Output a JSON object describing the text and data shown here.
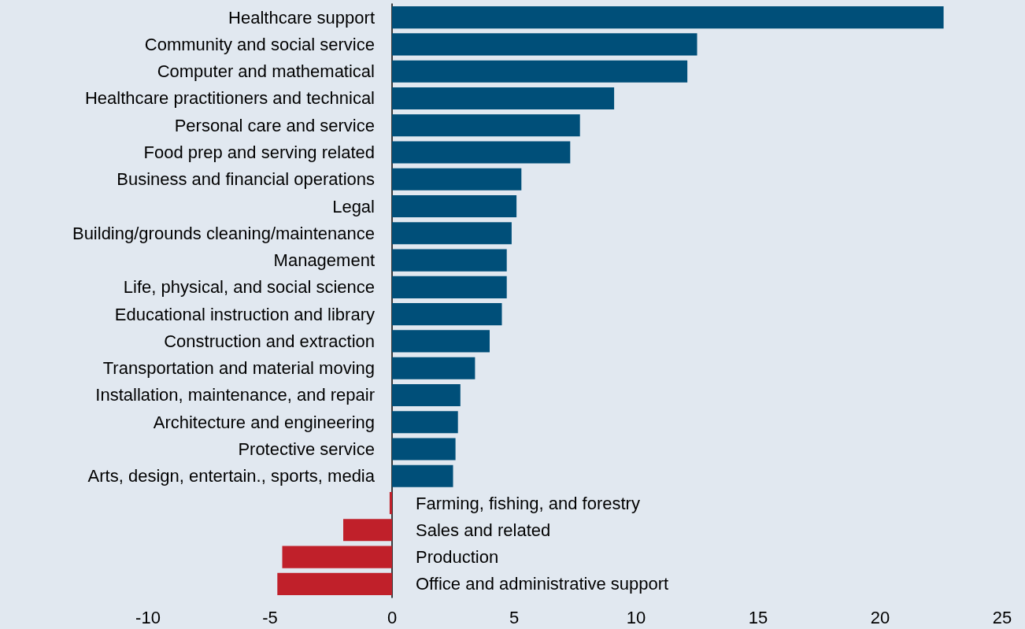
{
  "chart_data": {
    "type": "bar",
    "orientation": "horizontal",
    "categories": [
      "Healthcare support",
      "Community and social service",
      "Computer and mathematical",
      "Healthcare practitioners and technical",
      "Personal care and service",
      "Food prep and serving related",
      "Business and financial operations",
      "Legal",
      "Building/grounds cleaning/maintenance",
      "Management",
      "Life, physical, and social science",
      "Educational instruction and library",
      "Construction and extraction",
      "Transportation and material moving",
      "Installation, maintenance, and repair",
      "Architecture and engineering",
      "Protective service",
      "Arts, design, entertain., sports, media",
      "Farming, fishing, and forestry",
      "Sales and related",
      "Production",
      "Office and administrative support"
    ],
    "values": [
      22.6,
      12.5,
      12.1,
      9.1,
      7.7,
      7.3,
      5.3,
      5.1,
      4.9,
      4.7,
      4.7,
      4.5,
      4.0,
      3.4,
      2.8,
      2.7,
      2.6,
      2.5,
      -0.1,
      -2.0,
      -4.5,
      -4.7
    ],
    "colors": [
      "#004f79",
      "#004f79",
      "#004f79",
      "#004f79",
      "#004f79",
      "#004f79",
      "#004f79",
      "#004f79",
      "#004f79",
      "#004f79",
      "#004f79",
      "#004f79",
      "#004f79",
      "#004f79",
      "#004f79",
      "#004f79",
      "#004f79",
      "#004f79",
      "#c0202a",
      "#c0202a",
      "#c0202a",
      "#c0202a"
    ],
    "xlim": [
      -10,
      25
    ],
    "xticks": [
      -10,
      -5,
      0,
      5,
      10,
      15,
      20,
      25
    ]
  }
}
